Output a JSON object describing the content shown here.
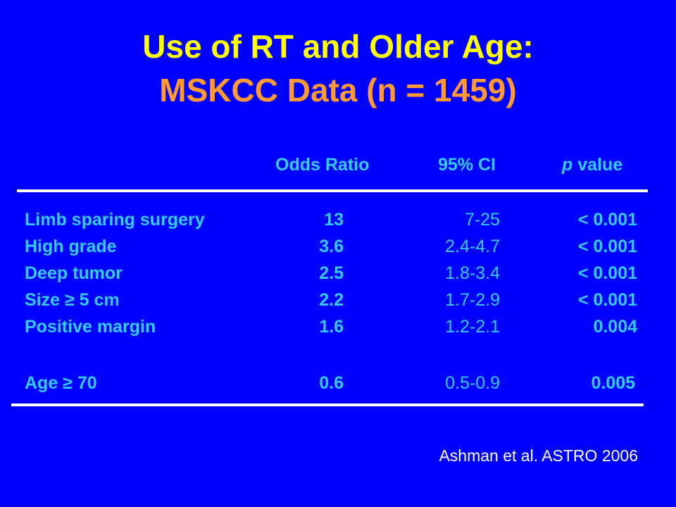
{
  "title": {
    "line1": "Use of RT and Older Age:",
    "line2": "MSKCC Data (n = 1459)"
  },
  "table": {
    "headers": {
      "odds_ratio": "Odds Ratio",
      "ci": "95% CI",
      "p_value_italic": "p",
      "p_value_rest": " value"
    },
    "rows": [
      {
        "label": "Limb sparing surgery",
        "odds_ratio": "13",
        "ci": "7-25",
        "p": "< 0.001"
      },
      {
        "label": "High grade",
        "odds_ratio": "3.6",
        "ci": "2.4-4.7",
        "p": "< 0.001"
      },
      {
        "label": "Deep tumor",
        "odds_ratio": "2.5",
        "ci": "1.8-3.4",
        "p": "< 0.001"
      },
      {
        "label": "Size ≥ 5 cm",
        "odds_ratio": "2.2",
        "ci": "1.7-2.9",
        "p": "< 0.001"
      },
      {
        "label": "Positive margin",
        "odds_ratio": "1.6",
        "ci": "1.2-2.1",
        "p": "0.004"
      },
      {
        "label": "Age ≥ 70",
        "odds_ratio": "0.6",
        "ci": "0.5-0.9",
        "p": "0.005"
      }
    ]
  },
  "citation": "Ashman et al. ASTRO 2006",
  "colors": {
    "background": "#0000ff",
    "title_primary": "#ffff00",
    "title_secondary": "#ff9933",
    "table_text": "#33ccff",
    "rule": "#ffffff",
    "citation": "#ffffff"
  }
}
